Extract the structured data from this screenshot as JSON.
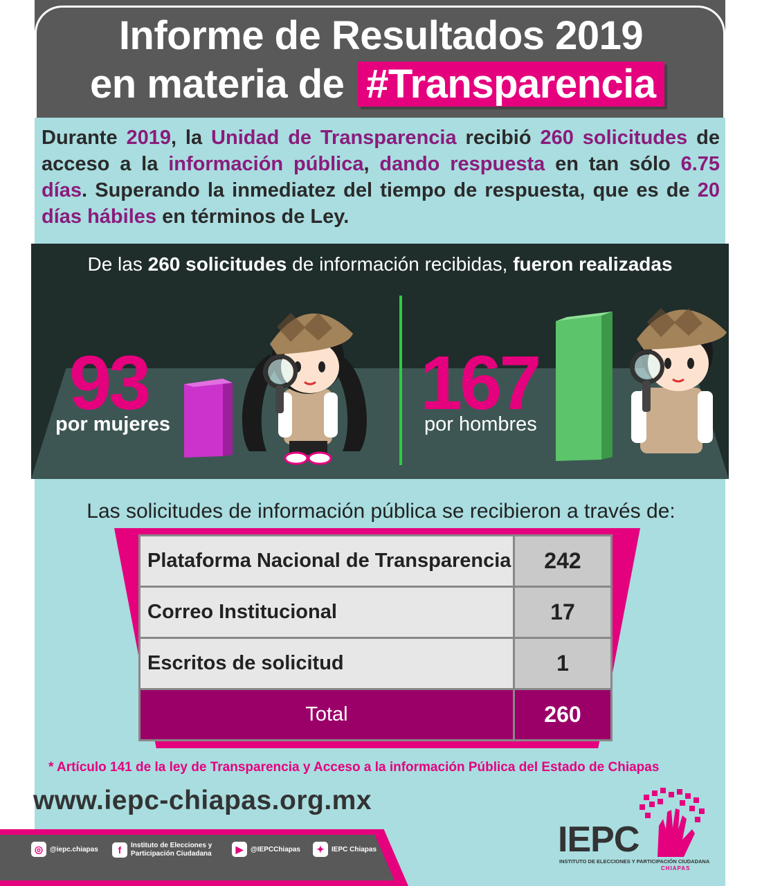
{
  "header": {
    "title_line1": "Informe de Resultados 2019",
    "title_line2_prefix": "en materia de",
    "title_line2_highlight": "#Transparencia"
  },
  "intro": {
    "w1": "Durante ",
    "h1": "2019",
    "w2": ", la ",
    "h2": "Unidad de Transparencia",
    "w3": " recibió ",
    "h3": "260 solicitudes",
    "w4": " de acceso a la ",
    "h4": "información pública",
    "w5": ", ",
    "h5": "dando respuesta",
    "w6": " en tan sólo ",
    "h6": "6.75 días",
    "w7": ". Superando la inmediatez del tiempo de respuesta, que es de ",
    "h7": "20 días hábiles",
    "w8": " en términos de Ley."
  },
  "stats": {
    "title_a": "De las ",
    "title_b": "260 solicitudes",
    "title_c": " de información recibidas, ",
    "title_d": "fueron realizadas",
    "women_count": "93",
    "women_label": "por mujeres",
    "men_count": "167",
    "men_label": "por hombres",
    "women_color": "#cc33cc",
    "men_color": "#5cc46a"
  },
  "channels": {
    "title": "Las solicitudes de información pública se recibieron a través de:",
    "rows": [
      {
        "label": "Plataforma Nacional de Transparencia",
        "value": "242"
      },
      {
        "label": "Correo Institucional",
        "value": "17"
      },
      {
        "label": "Escritos de solicitud",
        "value": "1"
      }
    ],
    "total_label": "Total",
    "total_value": "260"
  },
  "footer": {
    "note": "* Artículo 141 de la ley de Transparencia y Acceso a la información Pública del Estado de Chiapas",
    "url": "www.iepc-chiapas.org.mx",
    "social": {
      "instagram": "@iepc.chiapas",
      "facebook_l1": "Instituto de Elecciones y",
      "facebook_l2": "Participación Ciudadana",
      "youtube": "@IEPCChiapas",
      "twitter": "IEPC Chiapas"
    },
    "logo": "IEPC",
    "logo_sub": "INSTITUTO DE ELECCIONES Y PARTICIPACIÓN CIUDADANA",
    "logo_sub2": "CHIAPAS"
  },
  "colors": {
    "accent": "#e5007e",
    "dark_purple": "#9b0069",
    "teal": "#a9dde0"
  }
}
